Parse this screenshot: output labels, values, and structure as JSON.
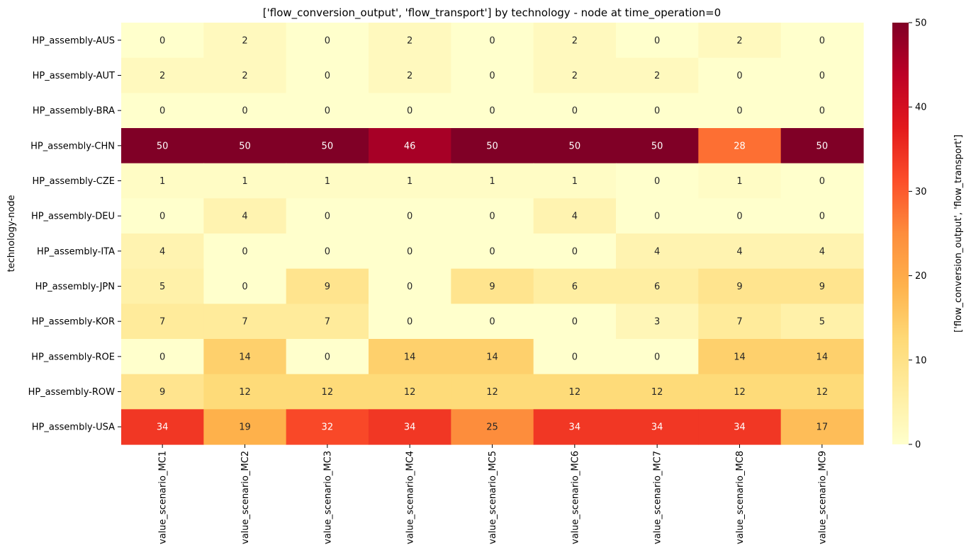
{
  "chart_data": {
    "type": "heatmap",
    "title": "['flow_conversion_output', 'flow_transport'] by technology - node at time_operation=0",
    "xlabel": "",
    "ylabel": "technology-node",
    "colorbar_label": "['flow_conversion_output', 'flow_transport']",
    "colormap": "YlOrRd",
    "vmin": 0,
    "vmax": 50,
    "colorbar_ticks": [
      0,
      10,
      20,
      30,
      40,
      50
    ],
    "x_categories": [
      "value_scenario_MC1",
      "value_scenario_MC2",
      "value_scenario_MC3",
      "value_scenario_MC4",
      "value_scenario_MC5",
      "value_scenario_MC6",
      "value_scenario_MC7",
      "value_scenario_MC8",
      "value_scenario_MC9"
    ],
    "y_categories": [
      "HP_assembly-AUS",
      "HP_assembly-AUT",
      "HP_assembly-BRA",
      "HP_assembly-CHN",
      "HP_assembly-CZE",
      "HP_assembly-DEU",
      "HP_assembly-ITA",
      "HP_assembly-JPN",
      "HP_assembly-KOR",
      "HP_assembly-ROE",
      "HP_assembly-ROW",
      "HP_assembly-USA"
    ],
    "values": [
      [
        0,
        2,
        0,
        2,
        0,
        2,
        0,
        2,
        0
      ],
      [
        2,
        2,
        0,
        2,
        0,
        2,
        2,
        0,
        0
      ],
      [
        0,
        0,
        0,
        0,
        0,
        0,
        0,
        0,
        0
      ],
      [
        50,
        50,
        50,
        46,
        50,
        50,
        50,
        28,
        50
      ],
      [
        1,
        1,
        1,
        1,
        1,
        1,
        0,
        1,
        0
      ],
      [
        0,
        4,
        0,
        0,
        0,
        4,
        0,
        0,
        0
      ],
      [
        4,
        0,
        0,
        0,
        0,
        0,
        4,
        4,
        4
      ],
      [
        5,
        0,
        9,
        0,
        9,
        6,
        6,
        9,
        9
      ],
      [
        7,
        7,
        7,
        0,
        0,
        0,
        3,
        7,
        5
      ],
      [
        0,
        14,
        0,
        14,
        14,
        0,
        0,
        14,
        14
      ],
      [
        9,
        12,
        12,
        12,
        12,
        12,
        12,
        12,
        12
      ],
      [
        34,
        19,
        32,
        34,
        25,
        34,
        34,
        34,
        17
      ]
    ]
  }
}
